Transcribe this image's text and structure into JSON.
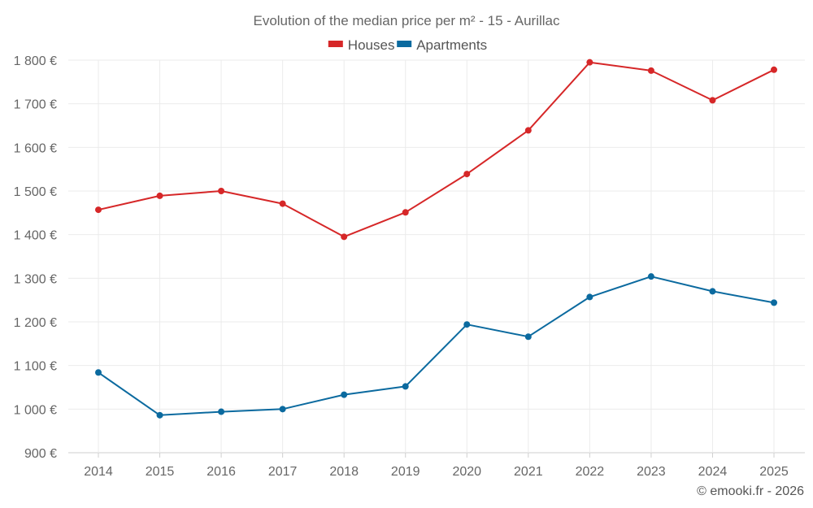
{
  "chart_data": {
    "type": "line",
    "title": "Evolution of the median price per m² - 15 - Aurillac",
    "categories": [
      "2014",
      "2015",
      "2016",
      "2017",
      "2018",
      "2019",
      "2020",
      "2021",
      "2022",
      "2023",
      "2024",
      "2025"
    ],
    "series": [
      {
        "name": "Houses",
        "color": "#d62728",
        "values": [
          1457,
          1489,
          1500,
          1471,
          1395,
          1451,
          1539,
          1639,
          1795,
          1776,
          1708,
          1778
        ]
      },
      {
        "name": "Apartments",
        "color": "#0b6a9f",
        "values": [
          1084,
          986,
          994,
          1000,
          1033,
          1052,
          1194,
          1166,
          1257,
          1304,
          1270,
          1244
        ]
      }
    ],
    "ylim": [
      900,
      1800
    ],
    "yticks": [
      900,
      1000,
      1100,
      1200,
      1300,
      1400,
      1500,
      1600,
      1700,
      1800
    ],
    "ytick_labels": [
      "900 €",
      "1 000 €",
      "1 100 €",
      "1 200 €",
      "1 300 €",
      "1 400 €",
      "1 500 €",
      "1 600 €",
      "1 700 €",
      "1 800 €"
    ],
    "xlabel": "",
    "ylabel": "",
    "grid": true,
    "legend_position": "top-center"
  },
  "credit": "© emooki.fr - 2026"
}
